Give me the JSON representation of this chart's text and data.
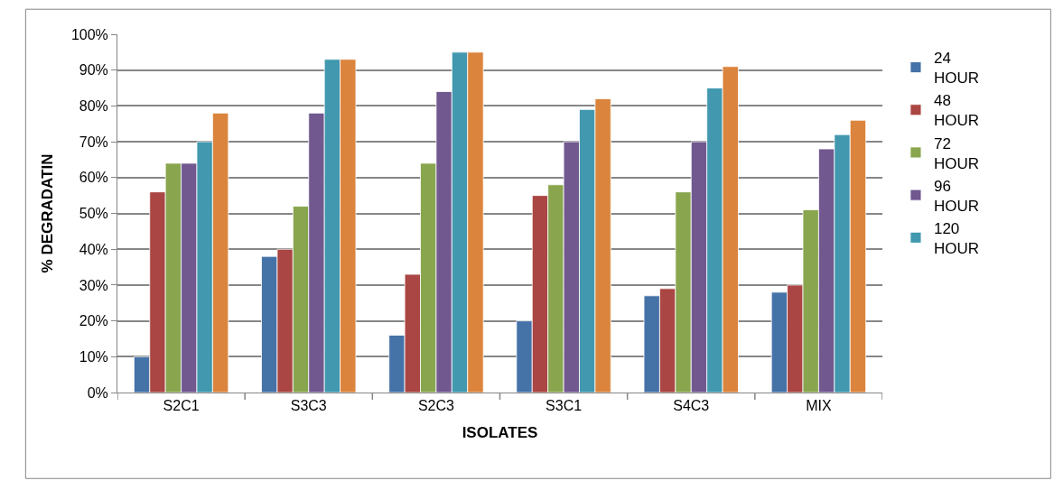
{
  "chart_data": {
    "type": "bar",
    "xlabel": "ISOLATES",
    "ylabel": "% DEGRADATIN",
    "categories": [
      "S2C1",
      "S3C3",
      "S2C3",
      "S3C1",
      "S4C3",
      "MIX"
    ],
    "series": [
      {
        "name": "24 HOUR",
        "color": "#4572a7",
        "values": [
          10,
          38,
          16,
          20,
          27,
          28
        ]
      },
      {
        "name": "48 HOUR",
        "color": "#aa4643",
        "values": [
          56,
          40,
          33,
          55,
          29,
          30
        ]
      },
      {
        "name": "72 HOUR",
        "color": "#89a54e",
        "values": [
          64,
          52,
          64,
          58,
          56,
          51
        ]
      },
      {
        "name": "96 HOUR",
        "color": "#71588f",
        "values": [
          64,
          78,
          84,
          70,
          70,
          68
        ]
      },
      {
        "name": "120 HOUR",
        "color": "#4198af",
        "values": [
          70,
          93,
          95,
          79,
          85,
          72
        ]
      },
      {
        "color": "#db843d",
        "values": [
          78,
          93,
          95,
          82,
          91,
          76
        ]
      }
    ],
    "ylim": [
      0,
      100
    ],
    "yticks": [
      {
        "value": 0,
        "label": "0%"
      },
      {
        "value": 10,
        "label": "10%"
      },
      {
        "value": 20,
        "label": "20%"
      },
      {
        "value": 30,
        "label": "30%"
      },
      {
        "value": 40,
        "label": "40%"
      },
      {
        "value": 50,
        "label": "50%"
      },
      {
        "value": 60,
        "label": "60%"
      },
      {
        "value": 70,
        "label": "70%"
      },
      {
        "value": 80,
        "label": "80%"
      },
      {
        "value": 90,
        "label": "90%"
      },
      {
        "value": 100,
        "label": "100%"
      }
    ],
    "grid": "y",
    "legend": "right"
  }
}
